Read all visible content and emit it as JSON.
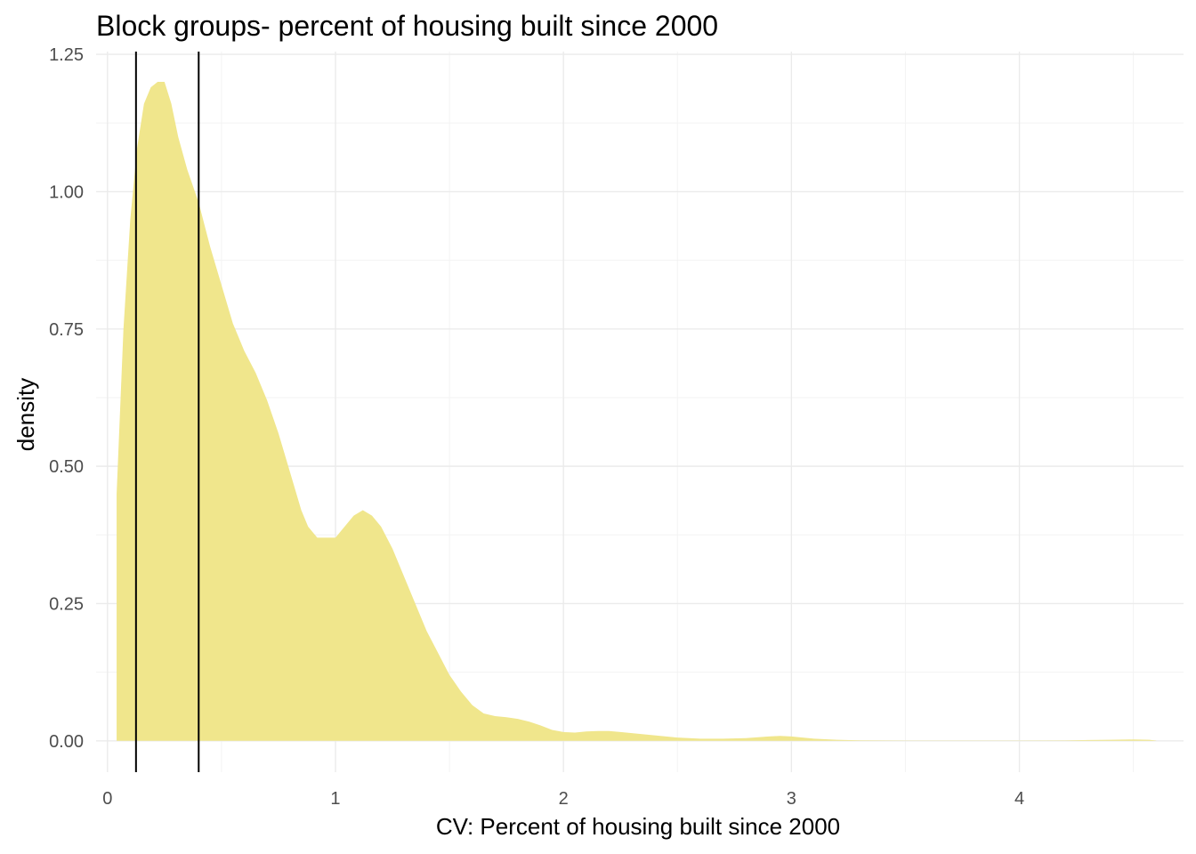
{
  "chart_data": {
    "type": "area",
    "title": "Block groups- percent of housing built since 2000",
    "xlabel": "CV: Percent of housing built since 2000",
    "ylabel": "density",
    "xlim": [
      -0.05,
      4.72
    ],
    "ylim": [
      -0.057,
      1.255
    ],
    "x_ticks": [
      0,
      1,
      2,
      3,
      4
    ],
    "y_ticks": [
      0.0,
      0.25,
      0.5,
      0.75,
      1.0,
      1.25
    ],
    "x_tick_labels": [
      "0",
      "1",
      "2",
      "3",
      "4"
    ],
    "y_tick_labels": [
      "0.00",
      "0.25",
      "0.50",
      "0.75",
      "1.00",
      "1.25"
    ],
    "grid": true,
    "fill_color": "#F0E68C",
    "vlines": [
      0.125,
      0.4
    ],
    "series": [
      {
        "x": [
          0.04,
          0.05,
          0.07,
          0.1,
          0.13,
          0.16,
          0.19,
          0.22,
          0.25,
          0.28,
          0.31,
          0.35,
          0.4,
          0.45,
          0.5,
          0.55,
          0.6,
          0.65,
          0.7,
          0.75,
          0.8,
          0.85,
          0.88,
          0.92,
          0.96,
          1.0,
          1.04,
          1.08,
          1.12,
          1.16,
          1.2,
          1.25,
          1.3,
          1.35,
          1.4,
          1.45,
          1.5,
          1.55,
          1.6,
          1.65,
          1.7,
          1.75,
          1.8,
          1.85,
          1.9,
          1.95,
          2.0,
          2.05,
          2.1,
          2.15,
          2.2,
          2.25,
          2.3,
          2.4,
          2.5,
          2.6,
          2.7,
          2.8,
          2.9,
          2.95,
          3.0,
          3.05,
          3.1,
          3.2,
          3.3,
          3.5,
          4.0,
          4.2,
          4.3,
          4.4,
          4.5,
          4.57,
          4.6
        ],
        "y": [
          0.45,
          0.55,
          0.75,
          0.95,
          1.08,
          1.16,
          1.19,
          1.2,
          1.2,
          1.16,
          1.1,
          1.04,
          0.98,
          0.9,
          0.83,
          0.76,
          0.71,
          0.67,
          0.62,
          0.56,
          0.49,
          0.42,
          0.39,
          0.37,
          0.37,
          0.37,
          0.39,
          0.41,
          0.42,
          0.41,
          0.39,
          0.35,
          0.3,
          0.25,
          0.2,
          0.16,
          0.12,
          0.09,
          0.065,
          0.05,
          0.045,
          0.043,
          0.04,
          0.035,
          0.028,
          0.02,
          0.016,
          0.015,
          0.017,
          0.018,
          0.018,
          0.016,
          0.014,
          0.01,
          0.006,
          0.004,
          0.004,
          0.005,
          0.008,
          0.009,
          0.008,
          0.006,
          0.004,
          0.002,
          0.001,
          0.0005,
          0.0005,
          0.0008,
          0.0015,
          0.002,
          0.0025,
          0.002,
          0.0005
        ]
      }
    ]
  }
}
